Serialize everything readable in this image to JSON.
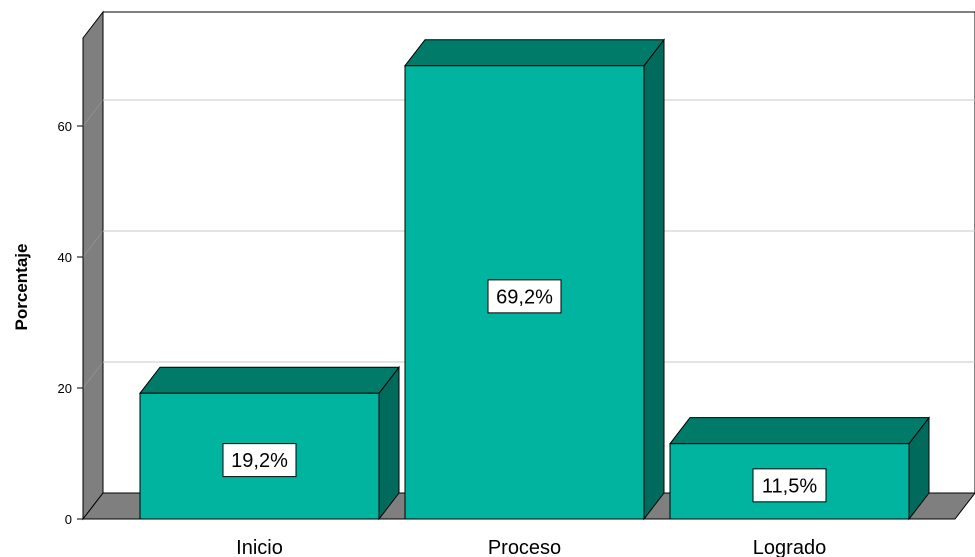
{
  "chart_data": {
    "type": "bar",
    "title": "",
    "xlabel": "",
    "ylabel": "Porcentaje",
    "categories": [
      "Inicio",
      "Proceso",
      "Logrado"
    ],
    "values": [
      19.2,
      69.2,
      11.5
    ],
    "data_labels": [
      "19,2%",
      "69,2%",
      "11,5%"
    ],
    "ylim": [
      0,
      80
    ],
    "yticks": [
      0,
      20,
      40,
      60
    ],
    "ytick_labels": [
      "0",
      "20",
      "40",
      "60"
    ],
    "grid": true,
    "three_d": true,
    "colors": {
      "bar_front": "#00B4A0",
      "bar_top": "#007A69",
      "bar_side": "#006B5C",
      "wall_side": "#7F7F7F",
      "floor": "#7F7F7F",
      "gridline": "#C8C8C8"
    }
  }
}
